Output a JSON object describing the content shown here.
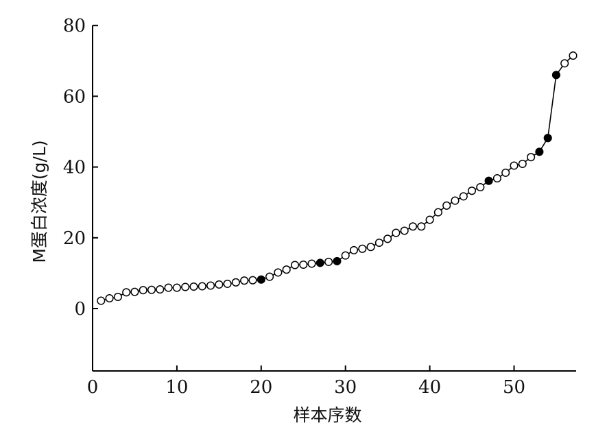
{
  "chart_data": {
    "type": "scatter",
    "xlabel": "样本序数",
    "ylabel": "M蛋白浓度(g/L)",
    "xlim": [
      0,
      57
    ],
    "ylim": [
      -18,
      80
    ],
    "x_ticks": [
      0,
      10,
      20,
      30,
      40,
      50
    ],
    "y_ticks": [
      0,
      20,
      40,
      60,
      80
    ],
    "grid": false,
    "series": [
      {
        "marker": "circle",
        "connected": true,
        "points": [
          {
            "x": 1,
            "y": 2.2,
            "filled": false
          },
          {
            "x": 2,
            "y": 2.9,
            "filled": false
          },
          {
            "x": 3,
            "y": 3.3,
            "filled": false
          },
          {
            "x": 4,
            "y": 4.6,
            "filled": false
          },
          {
            "x": 5,
            "y": 4.7,
            "filled": false
          },
          {
            "x": 6,
            "y": 5.2,
            "filled": false
          },
          {
            "x": 7,
            "y": 5.3,
            "filled": false
          },
          {
            "x": 8,
            "y": 5.4,
            "filled": false
          },
          {
            "x": 9,
            "y": 5.9,
            "filled": false
          },
          {
            "x": 10,
            "y": 5.9,
            "filled": false
          },
          {
            "x": 11,
            "y": 6.1,
            "filled": false
          },
          {
            "x": 12,
            "y": 6.2,
            "filled": false
          },
          {
            "x": 13,
            "y": 6.3,
            "filled": false
          },
          {
            "x": 14,
            "y": 6.5,
            "filled": false
          },
          {
            "x": 15,
            "y": 6.8,
            "filled": false
          },
          {
            "x": 16,
            "y": 7.0,
            "filled": false
          },
          {
            "x": 17,
            "y": 7.4,
            "filled": false
          },
          {
            "x": 18,
            "y": 7.9,
            "filled": false
          },
          {
            "x": 19,
            "y": 8.0,
            "filled": false
          },
          {
            "x": 20,
            "y": 8.2,
            "filled": true
          },
          {
            "x": 21,
            "y": 9.0,
            "filled": false
          },
          {
            "x": 22,
            "y": 10.2,
            "filled": false
          },
          {
            "x": 23,
            "y": 11.0,
            "filled": false
          },
          {
            "x": 24,
            "y": 12.3,
            "filled": false
          },
          {
            "x": 25,
            "y": 12.4,
            "filled": false
          },
          {
            "x": 26,
            "y": 12.7,
            "filled": false
          },
          {
            "x": 27,
            "y": 12.9,
            "filled": true
          },
          {
            "x": 28,
            "y": 13.2,
            "filled": false
          },
          {
            "x": 29,
            "y": 13.4,
            "filled": true
          },
          {
            "x": 30,
            "y": 15.0,
            "filled": false
          },
          {
            "x": 31,
            "y": 16.5,
            "filled": false
          },
          {
            "x": 32,
            "y": 16.9,
            "filled": false
          },
          {
            "x": 33,
            "y": 17.4,
            "filled": false
          },
          {
            "x": 34,
            "y": 18.6,
            "filled": false
          },
          {
            "x": 35,
            "y": 19.7,
            "filled": false
          },
          {
            "x": 36,
            "y": 21.4,
            "filled": false
          },
          {
            "x": 37,
            "y": 22.0,
            "filled": false
          },
          {
            "x": 38,
            "y": 23.2,
            "filled": false
          },
          {
            "x": 39,
            "y": 23.2,
            "filled": false
          },
          {
            "x": 40,
            "y": 25.1,
            "filled": false
          },
          {
            "x": 41,
            "y": 27.2,
            "filled": false
          },
          {
            "x": 42,
            "y": 29.1,
            "filled": false
          },
          {
            "x": 43,
            "y": 30.5,
            "filled": false
          },
          {
            "x": 44,
            "y": 31.7,
            "filled": false
          },
          {
            "x": 45,
            "y": 33.3,
            "filled": false
          },
          {
            "x": 46,
            "y": 34.3,
            "filled": false
          },
          {
            "x": 47,
            "y": 36.1,
            "filled": true
          },
          {
            "x": 48,
            "y": 36.8,
            "filled": false
          },
          {
            "x": 49,
            "y": 38.4,
            "filled": false
          },
          {
            "x": 50,
            "y": 40.4,
            "filled": false
          },
          {
            "x": 51,
            "y": 40.9,
            "filled": false
          },
          {
            "x": 52,
            "y": 42.8,
            "filled": false
          },
          {
            "x": 53,
            "y": 44.3,
            "filled": true
          },
          {
            "x": 54,
            "y": 48.2,
            "filled": true
          },
          {
            "x": 55,
            "y": 66.0,
            "filled": true
          },
          {
            "x": 56,
            "y": 69.3,
            "filled": false
          },
          {
            "x": 57,
            "y": 71.5,
            "filled": false
          }
        ]
      }
    ]
  }
}
